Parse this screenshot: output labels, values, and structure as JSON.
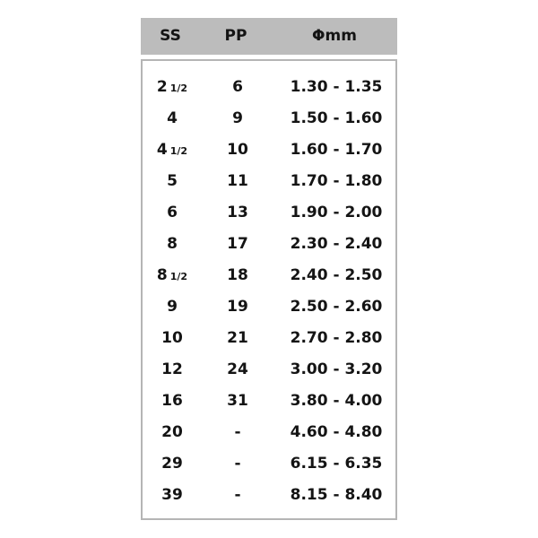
{
  "header": {
    "ss": "SS",
    "pp": "PP",
    "mm": "Φmm",
    "background": "#bcbcbc"
  },
  "rows": [
    {
      "ss": "2",
      "frac": "1/2",
      "pp": "6",
      "mm": "1.30 - 1.35"
    },
    {
      "ss": "4",
      "frac": "",
      "pp": "9",
      "mm": "1.50 - 1.60"
    },
    {
      "ss": "4",
      "frac": "1/2",
      "pp": "10",
      "mm": "1.60 - 1.70"
    },
    {
      "ss": "5",
      "frac": "",
      "pp": "11",
      "mm": "1.70 - 1.80"
    },
    {
      "ss": "6",
      "frac": "",
      "pp": "13",
      "mm": "1.90 - 2.00"
    },
    {
      "ss": "8",
      "frac": "",
      "pp": "17",
      "mm": "2.30 - 2.40"
    },
    {
      "ss": "8",
      "frac": "1/2",
      "pp": "18",
      "mm": "2.40 - 2.50"
    },
    {
      "ss": "9",
      "frac": "",
      "pp": "19",
      "mm": "2.50 - 2.60"
    },
    {
      "ss": "10",
      "frac": "",
      "pp": "21",
      "mm": "2.70 - 2.80"
    },
    {
      "ss": "12",
      "frac": "",
      "pp": "24",
      "mm": "3.00 - 3.20"
    },
    {
      "ss": "16",
      "frac": "",
      "pp": "31",
      "mm": "3.80 - 4.00"
    },
    {
      "ss": "20",
      "frac": "",
      "pp": "-",
      "mm": "4.60 - 4.80"
    },
    {
      "ss": "29",
      "frac": "",
      "pp": "-",
      "mm": "6.15 - 6.35"
    },
    {
      "ss": "39",
      "frac": "",
      "pp": "-",
      "mm": "8.15 - 8.40"
    }
  ]
}
